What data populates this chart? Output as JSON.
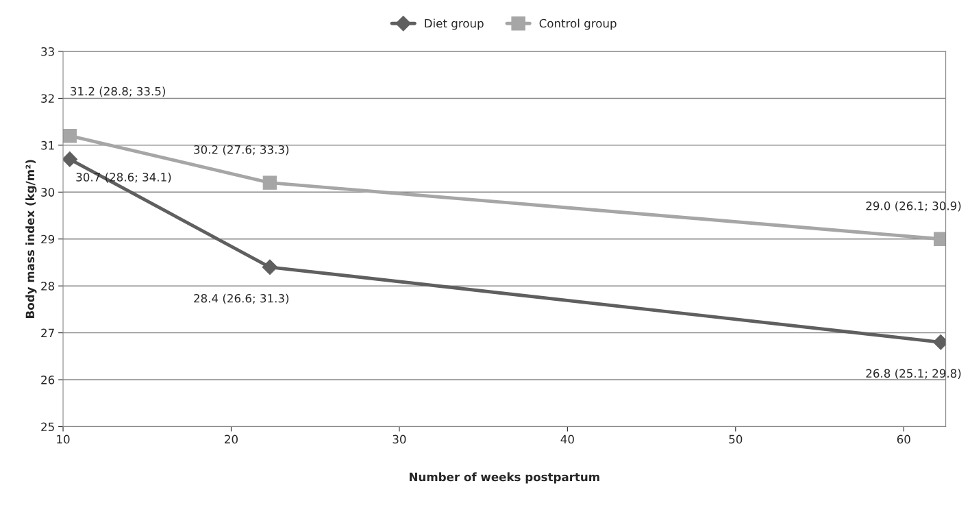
{
  "chart_data": {
    "type": "line",
    "xlabel": "Number of weeks postpartum",
    "ylabel": "Body mass index (kg/m²)",
    "xlim": [
      10,
      62.5
    ],
    "xticks": [
      10,
      20,
      30,
      40,
      50,
      60
    ],
    "ylim": [
      25,
      33
    ],
    "yticks": [
      25,
      26,
      27,
      28,
      29,
      30,
      31,
      32,
      33
    ],
    "grid": "y",
    "legend": "top",
    "series": [
      {
        "name": "Diet group",
        "color": "#5f5f5f",
        "marker": "diamond",
        "x": [
          10.4,
          22.3,
          62.2
        ],
        "values": [
          30.7,
          28.4,
          26.8
        ],
        "value_labels": [
          "30.7 (28.6; 34.1)",
          "28.4 (26.6; 31.3)",
          "26.8 (25.1; 29.8)"
        ]
      },
      {
        "name": "Control group",
        "color": "#a6a6a6",
        "marker": "square",
        "x": [
          10.4,
          22.3,
          62.2
        ],
        "values": [
          31.2,
          30.2,
          29.0
        ],
        "value_labels": [
          "31.2 (28.8; 33.5)",
          "30.2 (27.6; 33.3)",
          "29.0 (26.1; 30.9)"
        ]
      }
    ]
  }
}
